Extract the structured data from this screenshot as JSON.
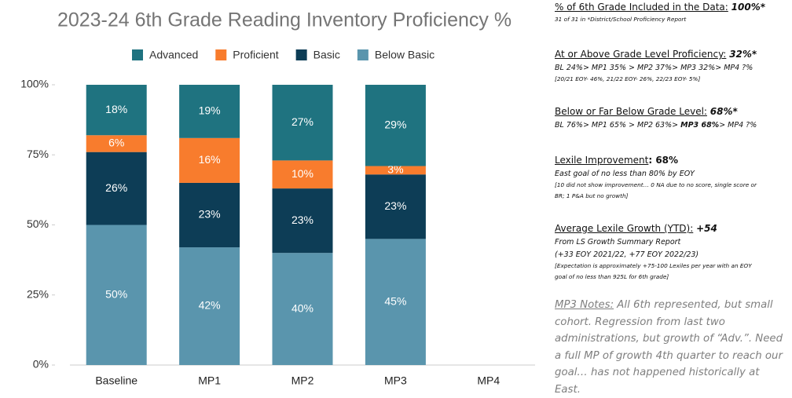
{
  "chart_data": {
    "type": "stacked_bar",
    "title": "2023-24 6th Grade Reading Inventory Proficiency %",
    "categories": [
      "Baseline",
      "MP1",
      "MP2",
      "MP3",
      "MP4"
    ],
    "series": [
      {
        "name": "Advanced",
        "color": "#1f7380",
        "values": [
          18,
          19,
          27,
          29,
          null
        ],
        "value_labels": [
          "18%",
          "19%",
          "27%",
          "29%",
          null
        ]
      },
      {
        "name": "Proficient",
        "color": "#f87c2d",
        "values": [
          6,
          16,
          10,
          3,
          null
        ],
        "value_labels": [
          "6%",
          "16%",
          "10%",
          "3%",
          null
        ]
      },
      {
        "name": "Basic",
        "color": "#0d3d56",
        "values": [
          26,
          23,
          23,
          23,
          null
        ],
        "value_labels": [
          "26%",
          "23%",
          "23%",
          "23%",
          null
        ]
      },
      {
        "name": "Below Basic",
        "color": "#5a95ad",
        "values": [
          50,
          42,
          40,
          45,
          null
        ],
        "value_labels": [
          "50%",
          "42%",
          "40%",
          "45%",
          null
        ]
      }
    ],
    "ylim": [
      0,
      100
    ],
    "yticks": [
      {
        "value": 0,
        "label": "0%"
      },
      {
        "value": 25,
        "label": "25%"
      },
      {
        "value": 50,
        "label": "50%"
      },
      {
        "value": 75,
        "label": "75%"
      },
      {
        "value": 100,
        "label": "100%"
      }
    ],
    "grid": false,
    "legend": "top"
  },
  "side_panel": {
    "items": [
      {
        "heading": "% of 6th Grade Included in the Data:",
        "value": "100%*",
        "lines": [],
        "note": [
          "31 of 31 in *District/School Proficiency Report"
        ]
      },
      {
        "heading": "At or Above Grade Level Proficiency:",
        "value": "32%*",
        "lines": [
          "BL 24%> MP1 35% > MP2 37%> MP3 32%> MP4 ?%"
        ],
        "note": [
          "[20/21 EOY- 46%, 21/22 EOY- 26%, 22/23 EOY- 5%]"
        ]
      },
      {
        "heading": "Below or Far Below Grade Level:",
        "value": "68%*",
        "lines": [],
        "line_parts": [
          "BL 76%> MP1 65% > MP2 63%> ",
          "MP3 68%",
          "> MP4 ?%"
        ],
        "note": []
      },
      {
        "heading": "Lexile Improvement",
        "value": ": 68%",
        "lines": [
          "East goal of no less than 80% by EOY"
        ],
        "note": [
          "[10 did not show improvement… 0 NA due to no score, single score or",
          "BR; 1 P&A but no growth]"
        ]
      },
      {
        "heading": "Average Lexile Growth (YTD):",
        "value": "+54",
        "lines": [
          "From LS Growth Summary Report",
          "(+33 EOY 2021/22, +77 EOY 2022/23)"
        ],
        "note": [
          "[Expectation is approximately +75-100 Lexiles per year with an EOY",
          "goal of no less than 925L for 6th grade]"
        ]
      }
    ],
    "notes_heading": "MP3 Notes:",
    "notes_text": " All 6th represented, but small cohort.  Regression from last two administrations, but growth of “Adv.”.  Need a full MP of growth 4th quarter to reach our goal… has not happened historically at East."
  }
}
